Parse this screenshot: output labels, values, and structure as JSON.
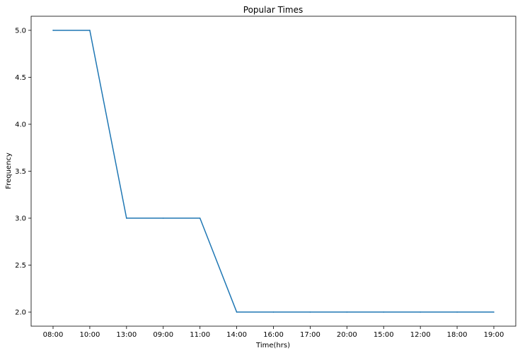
{
  "chart_data": {
    "type": "line",
    "title": "Popular Times",
    "xlabel": "Time(hrs)",
    "ylabel": "Frequency",
    "categories": [
      "08:00",
      "10:00",
      "13:00",
      "09:00",
      "11:00",
      "14:00",
      "16:00",
      "17:00",
      "20:00",
      "15:00",
      "12:00",
      "18:00",
      "19:00"
    ],
    "series": [
      {
        "values": [
          5,
          5,
          3,
          3,
          3,
          2,
          2,
          2,
          2,
          2,
          2,
          2,
          2
        ]
      }
    ],
    "yticks": [
      "2.0",
      "2.5",
      "3.0",
      "3.5",
      "4.0",
      "4.5",
      "5.0"
    ],
    "ylim": [
      1.85,
      5.15
    ],
    "grid": false,
    "line_color": "#1f77b4"
  }
}
